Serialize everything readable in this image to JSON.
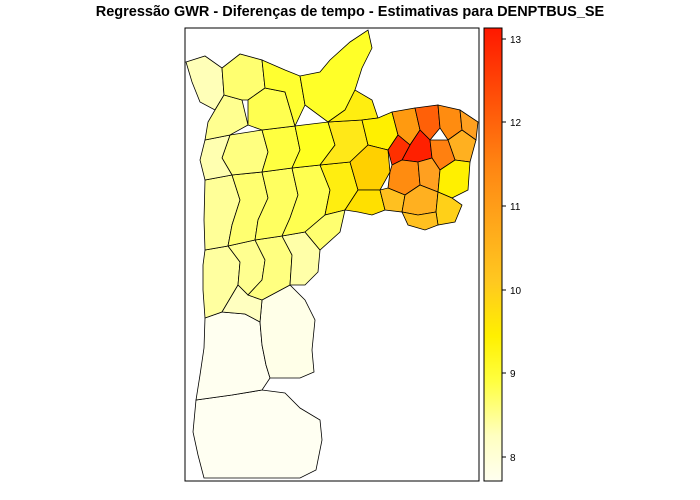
{
  "title": "Regressão GWR - Diferenças de tempo - Estimativas para DENPTBUS_SE",
  "legend": {
    "ticks": [
      "8",
      "9",
      "10",
      "11",
      "12",
      "13"
    ],
    "min_value": 7.7,
    "max_value": 13.2,
    "colors": [
      "#fffff0",
      "#ffffb0",
      "#ffff40",
      "#fff000",
      "#ffd21a",
      "#ffb020",
      "#ff8c10",
      "#ff5a00",
      "#ff2000"
    ]
  },
  "colors": {
    "frame": "#000000",
    "outline": "#000000"
  }
}
